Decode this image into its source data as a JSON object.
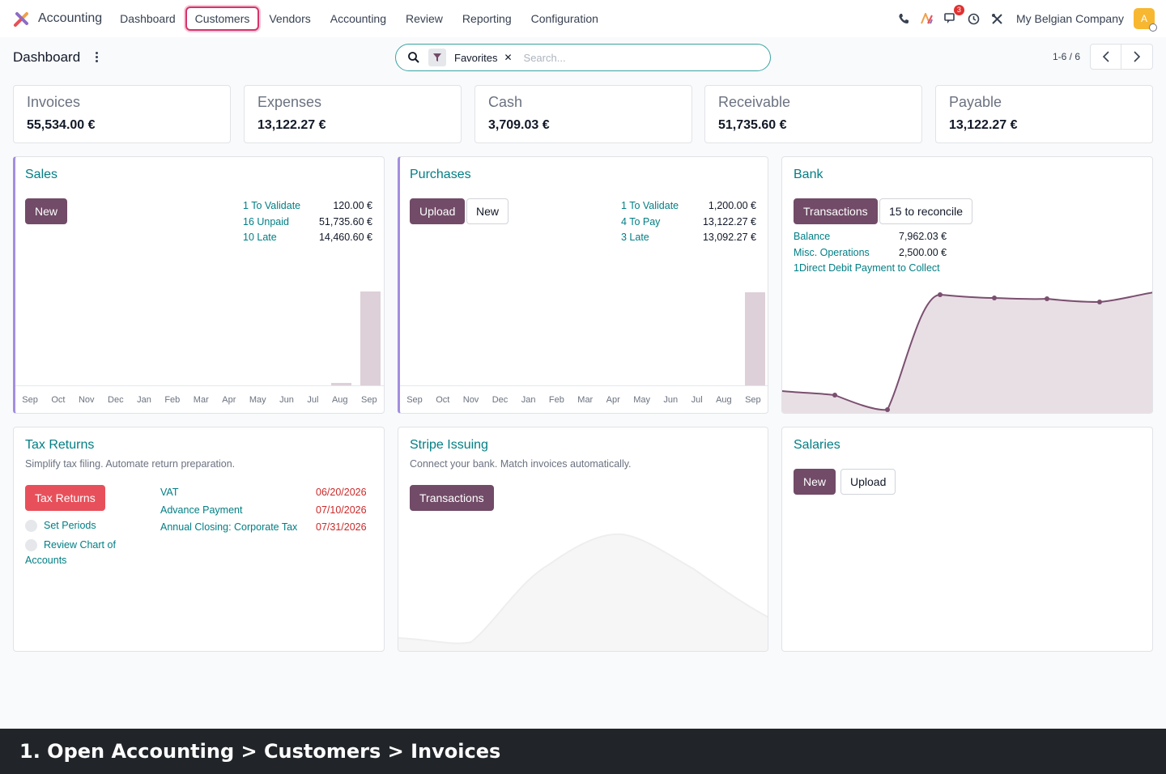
{
  "nav": {
    "brand": "Accounting",
    "menu": [
      "Dashboard",
      "Customers",
      "Vendors",
      "Accounting",
      "Review",
      "Reporting",
      "Configuration"
    ],
    "highlighted": "Customers",
    "message_badge": "3",
    "company": "My Belgian Company",
    "avatar_letter": "A"
  },
  "control": {
    "title": "Dashboard",
    "facet": "Favorites",
    "facet_remove": "✕",
    "search_placeholder": "Search...",
    "pager": "1-6 / 6"
  },
  "kpis": [
    {
      "label": "Invoices",
      "value": "55,534.00 €"
    },
    {
      "label": "Expenses",
      "value": "13,122.27 €"
    },
    {
      "label": "Cash",
      "value": "3,709.03 €"
    },
    {
      "label": "Receivable",
      "value": "51,735.60 €"
    },
    {
      "label": "Payable",
      "value": "13,122.27 €"
    }
  ],
  "sales": {
    "title": "Sales",
    "new_label": "New",
    "stats": [
      {
        "label": "1 To Validate",
        "value": "120.00 €"
      },
      {
        "label": "16 Unpaid",
        "value": "51,735.60 €"
      },
      {
        "label": "10 Late",
        "value": "14,460.60 €"
      }
    ],
    "months": [
      "Sep",
      "Oct",
      "Nov",
      "Dec",
      "Jan",
      "Feb",
      "Mar",
      "Apr",
      "May",
      "Jun",
      "Jul",
      "Aug",
      "Sep"
    ]
  },
  "purchases": {
    "title": "Purchases",
    "upload_label": "Upload",
    "new_label": "New",
    "stats": [
      {
        "label": "1 To Validate",
        "value": "1,200.00 €"
      },
      {
        "label": "4 To Pay",
        "value": "13,122.27 €"
      },
      {
        "label": "3 Late",
        "value": "13,092.27 €"
      }
    ],
    "months": [
      "Sep",
      "Oct",
      "Nov",
      "Dec",
      "Jan",
      "Feb",
      "Mar",
      "Apr",
      "May",
      "Jun",
      "Jul",
      "Aug",
      "Sep"
    ]
  },
  "bank": {
    "title": "Bank",
    "transactions_label": "Transactions",
    "reconcile_label": "15 to reconcile",
    "stats": [
      {
        "label": "Balance",
        "value": "7,962.03 €"
      },
      {
        "label": "Misc. Operations",
        "value": "2,500.00 €"
      }
    ],
    "direct_debit": "1Direct Debit Payment to Collect"
  },
  "tax": {
    "title": "Tax Returns",
    "subtitle": "Simplify tax filing. Automate return preparation.",
    "button": "Tax Returns",
    "steps": [
      "Set Periods",
      "Review Chart of",
      "Accounts"
    ],
    "items": [
      {
        "label": "VAT",
        "date": "06/20/2026"
      },
      {
        "label": "Advance Payment",
        "date": "07/10/2026"
      },
      {
        "label": "Annual Closing: Corporate Tax",
        "date": "07/31/2026"
      }
    ]
  },
  "stripe": {
    "title": "Stripe Issuing",
    "subtitle": "Connect your bank. Match invoices automatically.",
    "button": "Transactions"
  },
  "salaries": {
    "title": "Salaries",
    "new_label": "New",
    "upload_label": "Upload"
  },
  "caption": "1. Open Accounting > Customers > Invoices",
  "colors": {
    "primary": "#714b67",
    "teal": "#017e84",
    "danger": "#e7505a",
    "highlight": "#d6336c"
  }
}
